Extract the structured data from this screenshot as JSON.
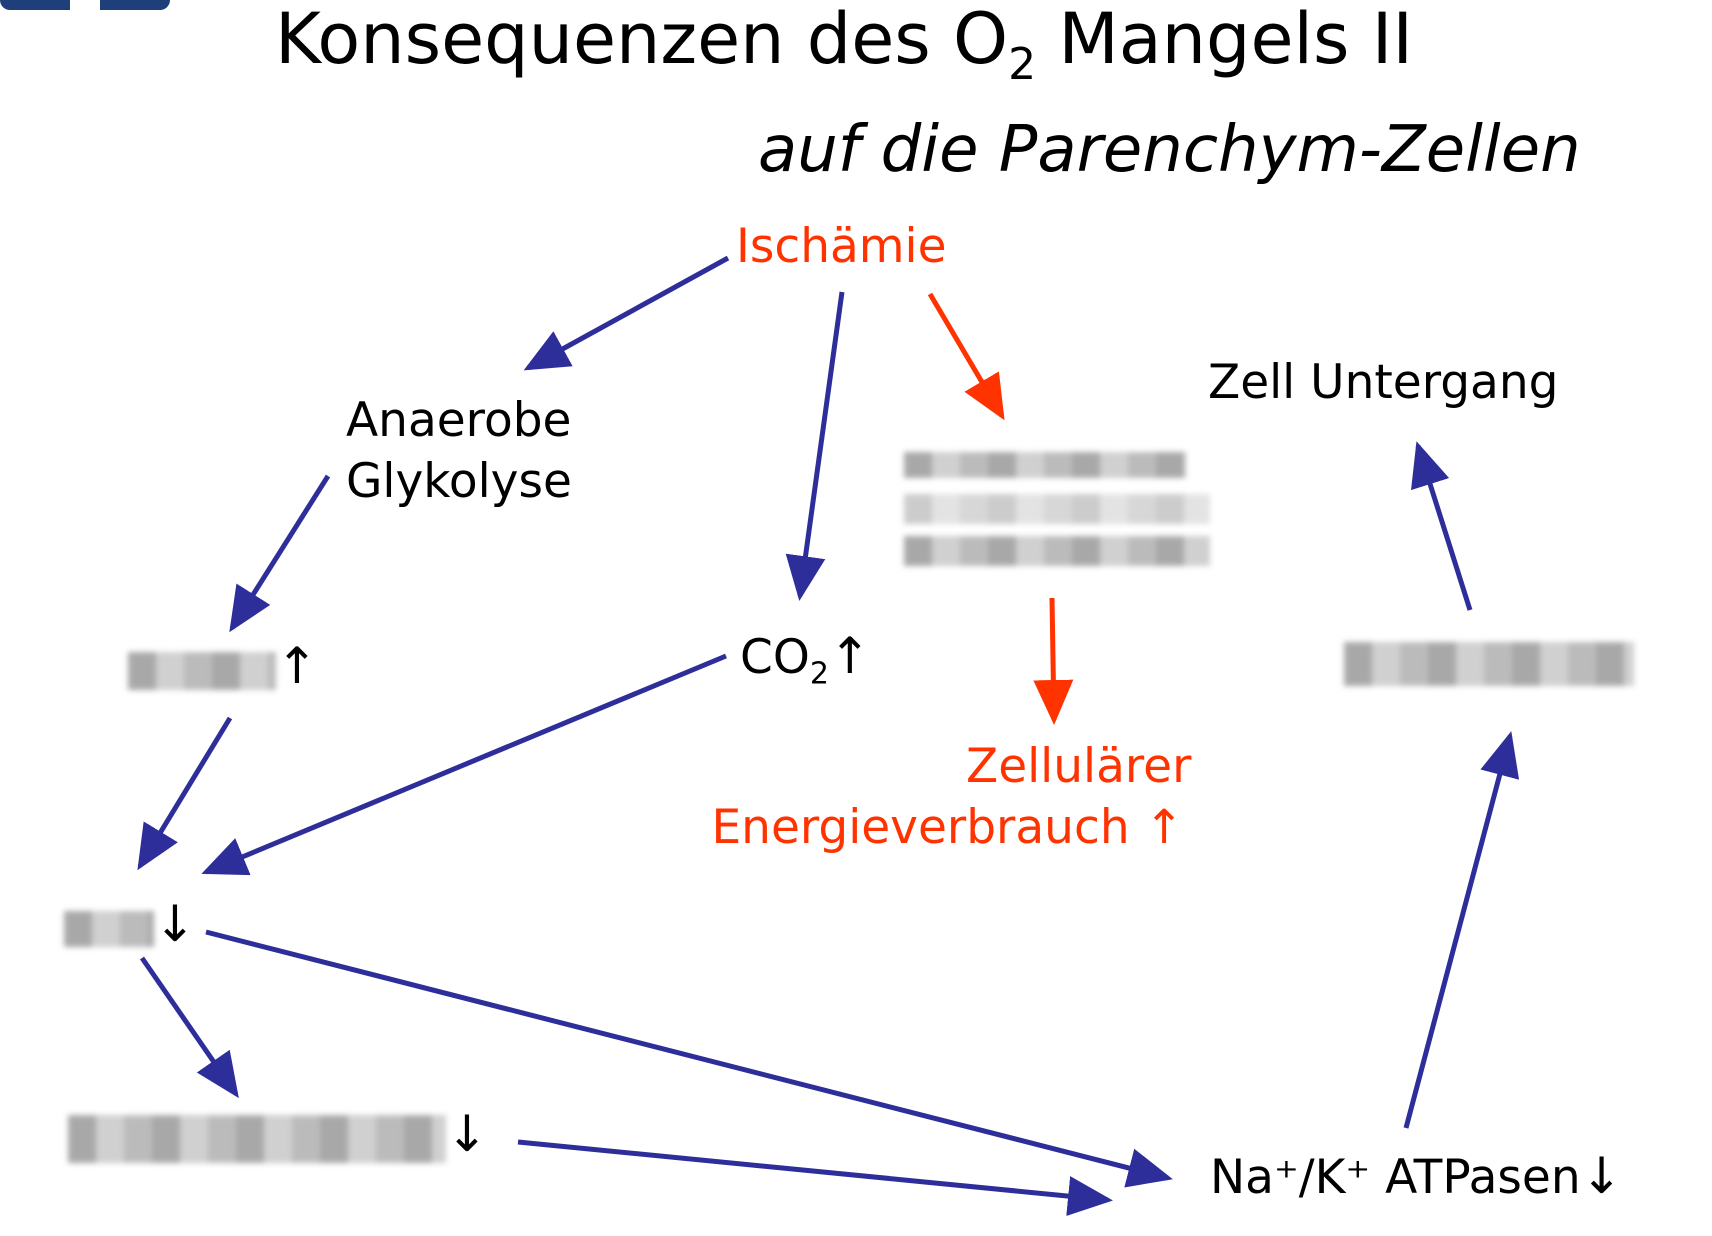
{
  "title": {
    "main": "Konsequenzen des O",
    "sub": "2",
    "rest": " Mangels II"
  },
  "subtitle": "auf die Parenchym-Zellen",
  "nodes": {
    "ischaemie": "Ischämie",
    "anaerobe_line1": "Anaerobe",
    "anaerobe_line2": "Glykolyse",
    "co2_main": "CO",
    "co2_sub": "2",
    "co2_arrow": "↑",
    "laktat_arrow": "↑",
    "ph_arrow": "↓",
    "enzym_arrow": "↓",
    "zell_line1": "Zellulärer",
    "zell_line2": "Energieverbrauch ↑",
    "zell_untergang": "Zell Untergang",
    "na_k": "Na⁺/K⁺ ATPasen",
    "na_k_arrow": "↓"
  },
  "colors": {
    "blue_arrow": "#2e2e9a",
    "red_arrow": "#ff3300",
    "title_accent": "#1f3f7a"
  }
}
